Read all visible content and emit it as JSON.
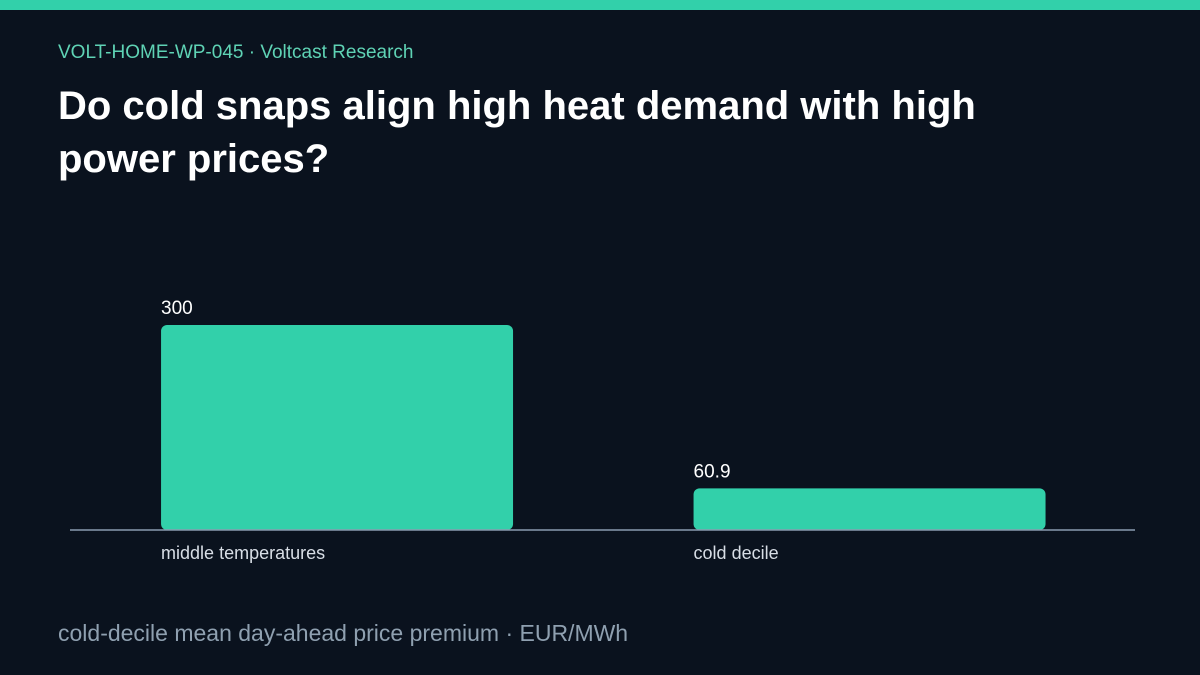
{
  "chart_data": {
    "type": "bar",
    "subtitle": "VOLT-HOME-WP-045 · Voltcast Research",
    "title": "Do cold snaps align high heat demand with high power prices?",
    "categories": [
      "middle temperatures",
      "cold decile"
    ],
    "values": [
      300,
      60.9
    ],
    "color": "#32d0aa",
    "ylim": [
      0,
      300
    ],
    "footnote": "cold-decile mean day-ahead price premium · EUR/MWh"
  }
}
